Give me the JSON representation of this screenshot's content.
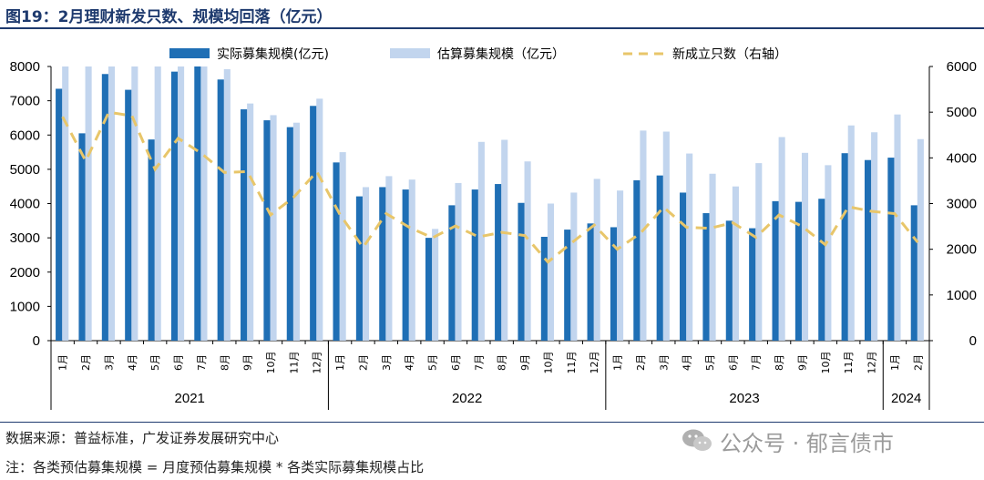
{
  "title": "图19：2月理财新发只数、规模均回落（亿元）",
  "source": "数据来源：普益标准，广发证券发展研究中心",
  "note": "注：各类预估募集规模 = 月度预估募集规模 * 各类实际募集规模占比",
  "watermark": "公众号 · 郁言债市",
  "colors": {
    "actual": "#1f6fb5",
    "estimated": "#c2d5ee",
    "count": "#e8c66a",
    "title": "#1e3a6e"
  },
  "chart_data": {
    "type": "bar",
    "categories": [
      "1月",
      "2月",
      "3月",
      "4月",
      "5月",
      "6月",
      "7月",
      "8月",
      "9月",
      "10月",
      "11月",
      "12月",
      "1月",
      "2月",
      "3月",
      "4月",
      "5月",
      "6月",
      "7月",
      "8月",
      "9月",
      "10月",
      "11月",
      "12月",
      "1月",
      "2月",
      "3月",
      "4月",
      "5月",
      "6月",
      "7月",
      "8月",
      "9月",
      "10月",
      "11月",
      "12月",
      "1月",
      "2月"
    ],
    "years": [
      {
        "label": "2021",
        "start": 0,
        "count": 12
      },
      {
        "label": "2022",
        "start": 12,
        "count": 12
      },
      {
        "label": "2023",
        "start": 24,
        "count": 12
      },
      {
        "label": "2024",
        "start": 36,
        "count": 2
      }
    ],
    "series": [
      {
        "name": "实际募集规模(亿元)",
        "type": "bar",
        "axis": "left",
        "values": [
          7350,
          6050,
          7780,
          7320,
          5870,
          7850,
          8000,
          7620,
          6750,
          6430,
          6230,
          6850,
          5200,
          4210,
          4480,
          4410,
          3000,
          3950,
          4410,
          4570,
          4020,
          3030,
          3240,
          3420,
          3310,
          4680,
          4820,
          4320,
          3720,
          3500,
          3280,
          4070,
          4050,
          4140,
          5470,
          5270,
          5340,
          3950
        ]
      },
      {
        "name": "估算募集规模（亿元）",
        "type": "bar",
        "axis": "left",
        "values": [
          8000,
          8000,
          8000,
          8000,
          8000,
          8000,
          8000,
          7920,
          6920,
          6580,
          6360,
          7060,
          5500,
          4480,
          4800,
          4700,
          3260,
          4600,
          5800,
          5860,
          5230,
          4000,
          4320,
          4720,
          4380,
          6130,
          6100,
          5460,
          4870,
          4500,
          5180,
          5940,
          5480,
          5120,
          6280,
          6080,
          6600,
          5880
        ]
      },
      {
        "name": "新成立只数（右轴）",
        "type": "line",
        "axis": "right",
        "values": [
          4900,
          3930,
          5000,
          4920,
          3750,
          4430,
          4100,
          3680,
          3700,
          2750,
          3140,
          3700,
          2760,
          2040,
          2780,
          2480,
          2250,
          2510,
          2270,
          2370,
          2300,
          1720,
          2130,
          2530,
          2000,
          2350,
          2920,
          2480,
          2460,
          2580,
          2260,
          2750,
          2500,
          2100,
          2930,
          2830,
          2780,
          2150
        ]
      }
    ],
    "ylim": [
      0,
      8000
    ],
    "y2lim": [
      0,
      6000
    ],
    "yticks": [
      "0",
      "1000",
      "2000",
      "3000",
      "4000",
      "5000",
      "6000",
      "7000",
      "8000"
    ],
    "y2ticks": [
      "0",
      "1000",
      "2000",
      "3000",
      "4000",
      "5000",
      "6000"
    ]
  }
}
